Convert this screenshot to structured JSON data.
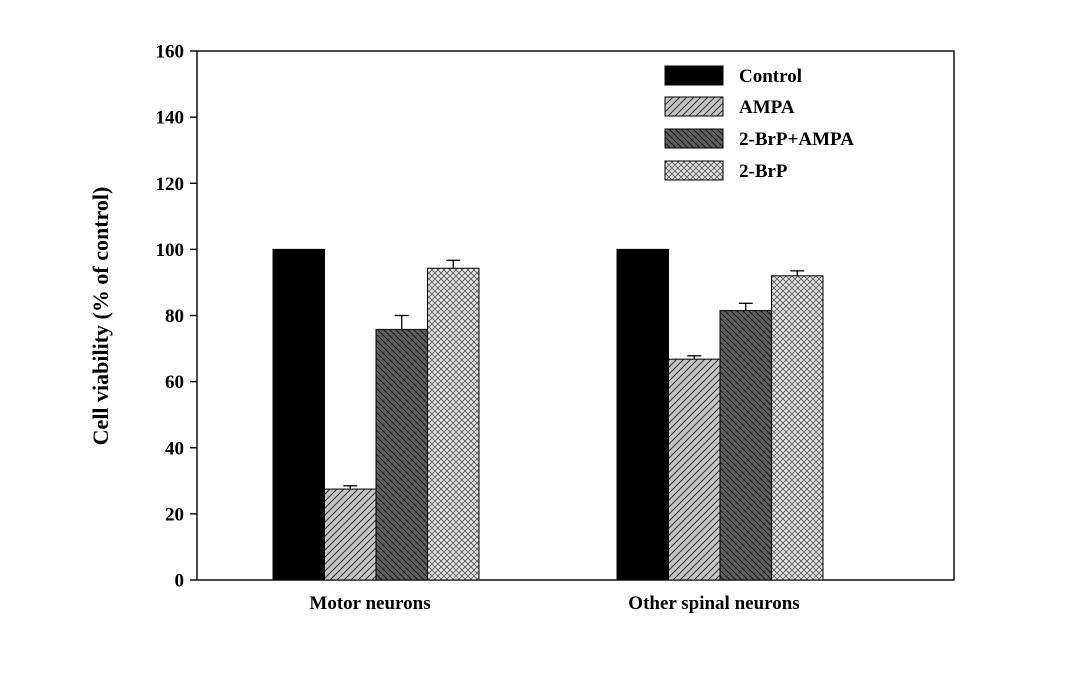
{
  "chart_data": {
    "type": "bar",
    "ylabel": "Cell viability (% of control)",
    "xlabel": "",
    "ylim": [
      0,
      160
    ],
    "yticks": [
      "0",
      "20",
      "40",
      "60",
      "80",
      "100",
      "120",
      "140",
      "160"
    ],
    "categories": [
      "Motor neurons",
      "Other spinal neurons"
    ],
    "series": [
      {
        "name": "Control",
        "values": [
          100,
          100
        ],
        "errors": [
          0,
          0
        ],
        "fill": "solid-black"
      },
      {
        "name": "AMPA",
        "values": [
          27.5,
          66.8
        ],
        "errors": [
          1.0,
          1.0
        ],
        "fill": "light-grey-diagonal-hatch"
      },
      {
        "name": "2-BrP+AMPA",
        "values": [
          75.8,
          81.5
        ],
        "errors": [
          4.2,
          2.2
        ],
        "fill": "dark-grey-back-diagonal-hatch"
      },
      {
        "name": "2-BrP",
        "values": [
          94.3,
          92.0
        ],
        "errors": [
          2.4,
          1.5
        ],
        "fill": "light-crosshatch"
      }
    ],
    "legend_position": "top-right",
    "grid": false
  }
}
